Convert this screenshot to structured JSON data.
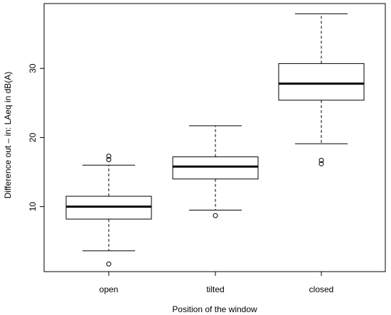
{
  "chart_data": {
    "type": "box",
    "xlabel": "Position of the window",
    "ylabel": "Difference out – in: LAeq in dB(A)",
    "categories": [
      "open",
      "tilted",
      "closed"
    ],
    "ylim": [
      0,
      39
    ],
    "yticks": [
      10,
      20,
      30
    ],
    "grid": false,
    "boxes": [
      {
        "category": "open",
        "whisker_low": 3.6,
        "q1": 8.2,
        "median": 10.0,
        "q3": 11.5,
        "whisker_high": 16.0,
        "outliers": [
          1.7,
          16.8,
          17.3
        ]
      },
      {
        "category": "tilted",
        "whisker_low": 9.5,
        "q1": 14.0,
        "median": 15.8,
        "q3": 17.2,
        "whisker_high": 21.7,
        "outliers": [
          8.7
        ]
      },
      {
        "category": "closed",
        "whisker_low": 19.1,
        "q1": 25.4,
        "median": 27.8,
        "q3": 30.7,
        "whisker_high": 37.9,
        "outliers": [
          16.2,
          16.7
        ]
      }
    ]
  }
}
